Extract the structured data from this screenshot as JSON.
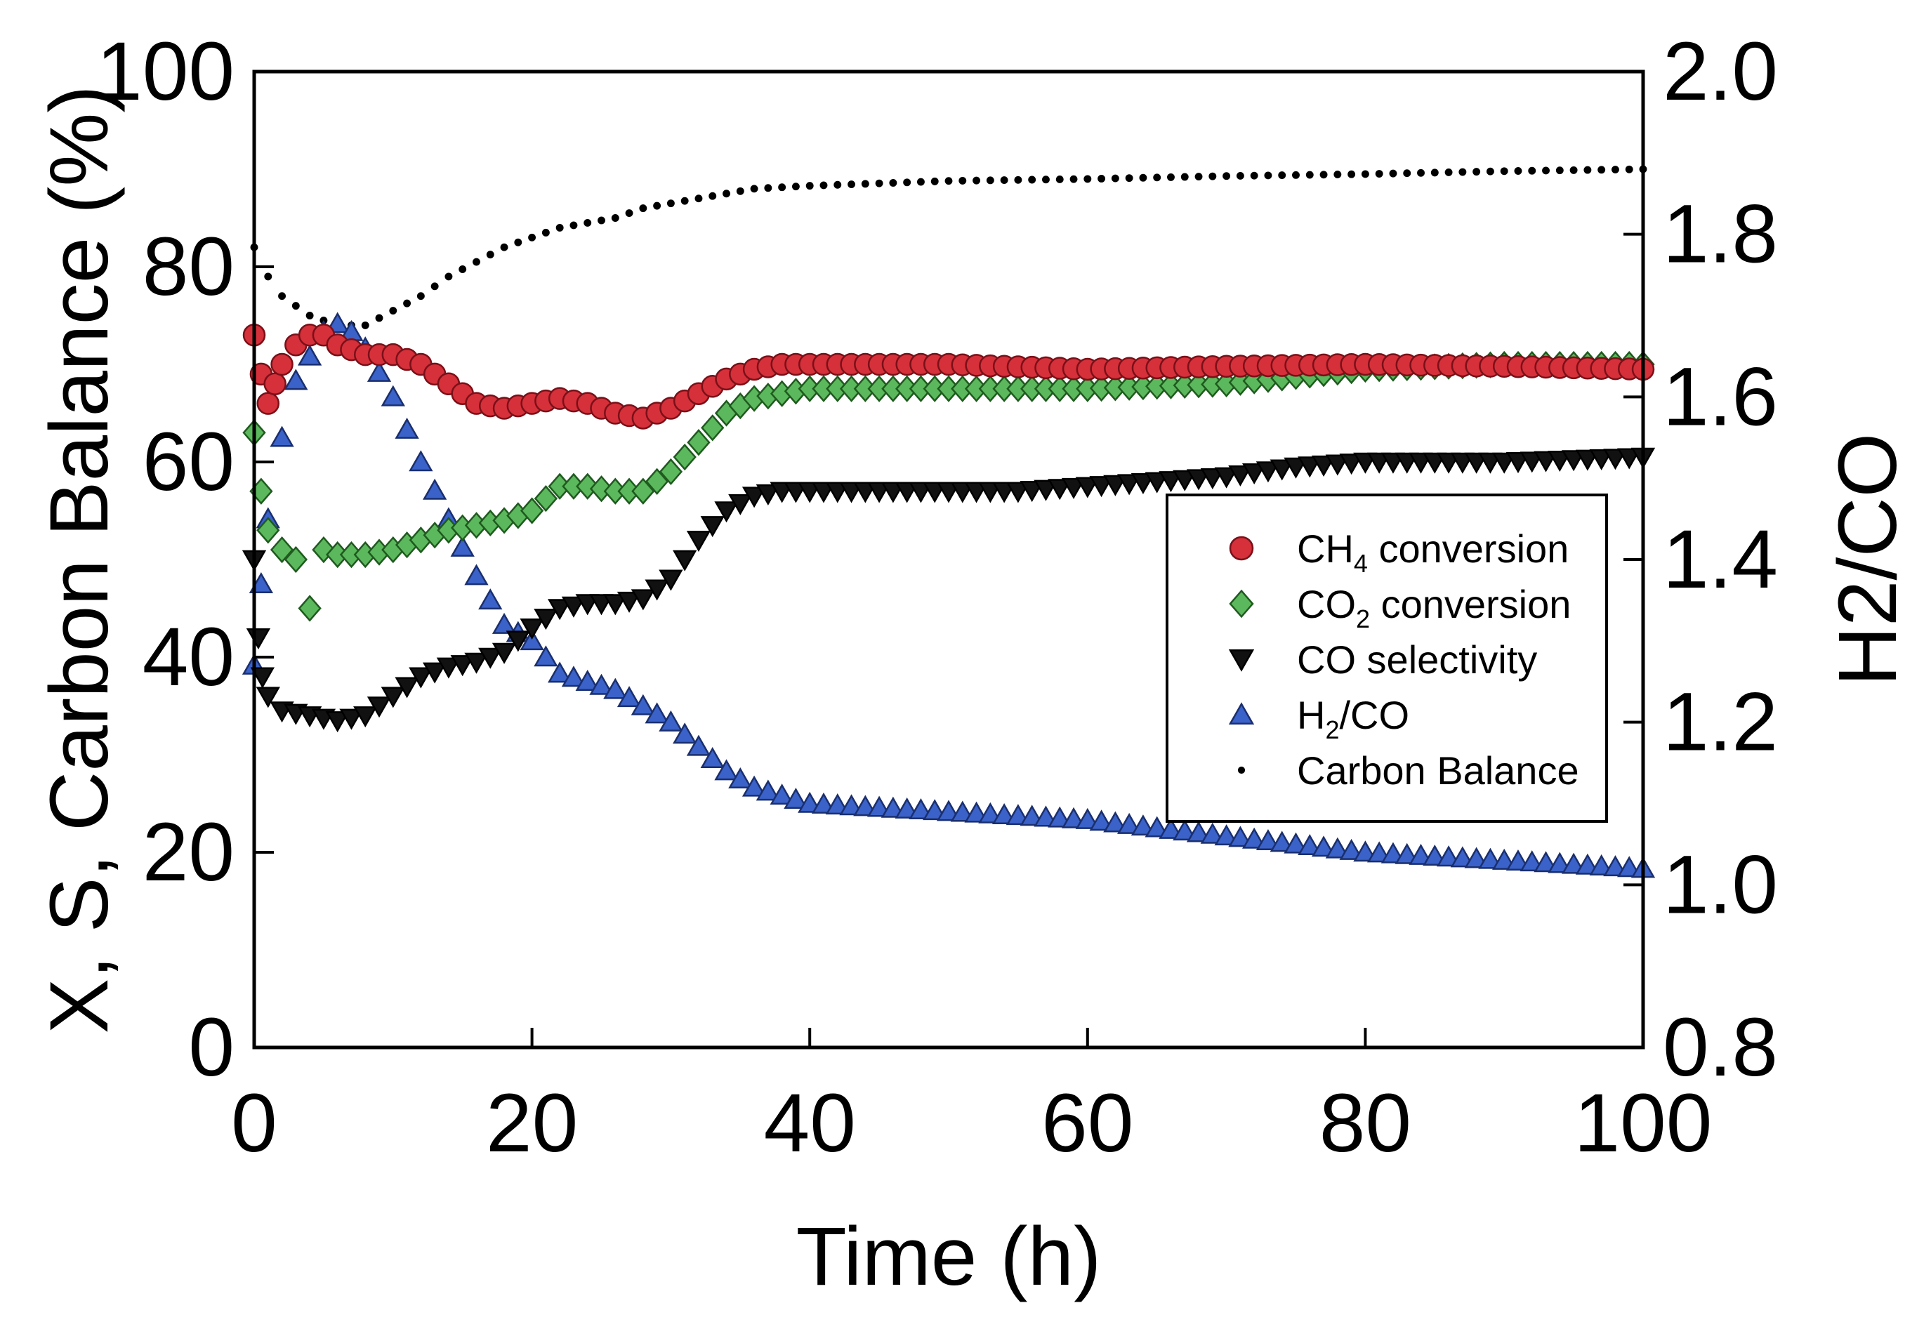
{
  "chart_data": {
    "type": "scatter",
    "title": "",
    "xlabel": "Time (h)",
    "ylabel": "X, S, Carbon Balance (%)",
    "y2label": "H2/CO",
    "xlim": [
      0,
      100
    ],
    "ylim": [
      0,
      100
    ],
    "y2lim": [
      0.8,
      2.0
    ],
    "xticks": [
      0,
      20,
      40,
      60,
      80,
      100
    ],
    "yticks": [
      0,
      20,
      40,
      60,
      80,
      100
    ],
    "y2ticks": [
      "0.8",
      "1.0",
      "1.2",
      "1.4",
      "1.6",
      "1.8",
      "2.0"
    ],
    "grid": false,
    "legend_position": "center-right",
    "legend": [
      {
        "label_main": "CH",
        "label_sub": "4",
        "label_rest": " conversion",
        "series": "ch4"
      },
      {
        "label_main": "CO",
        "label_sub": "2",
        "label_rest": " conversion",
        "series": "co2"
      },
      {
        "label_main": "CO selectivity",
        "label_sub": "",
        "label_rest": "",
        "series": "cosel"
      },
      {
        "label_main": "H",
        "label_sub": "2",
        "label_rest": "/CO",
        "series": "h2co"
      },
      {
        "label_main": "Carbon Balance",
        "label_sub": "",
        "label_rest": "",
        "series": "cb"
      }
    ],
    "series": [
      {
        "id": "ch4",
        "name": "CH4 conversion",
        "axis": "left",
        "marker": "circle",
        "color": "#d6303a",
        "stroke": "#7a1018",
        "points": [
          [
            0,
            73
          ],
          [
            0.5,
            69
          ],
          [
            1,
            66
          ],
          [
            1.5,
            68
          ],
          [
            2,
            70
          ],
          [
            3,
            72
          ],
          [
            4,
            73
          ],
          [
            5,
            73
          ],
          [
            6,
            72
          ],
          [
            8,
            71
          ],
          [
            10,
            71
          ],
          [
            12,
            70
          ],
          [
            14,
            68
          ],
          [
            16,
            66
          ],
          [
            18,
            65.5
          ],
          [
            20,
            66
          ],
          [
            22,
            66.5
          ],
          [
            24,
            66
          ],
          [
            26,
            65
          ],
          [
            28,
            64.5
          ],
          [
            30,
            65.5
          ],
          [
            32,
            67
          ],
          [
            34,
            68.5
          ],
          [
            36,
            69.5
          ],
          [
            38,
            70
          ],
          [
            40,
            70
          ],
          [
            50,
            70
          ],
          [
            60,
            69.5
          ],
          [
            70,
            69.8
          ],
          [
            80,
            70
          ],
          [
            90,
            69.8
          ],
          [
            100,
            69.5
          ]
        ]
      },
      {
        "id": "co2",
        "name": "CO2 conversion",
        "axis": "left",
        "marker": "diamond",
        "color": "#5cb85c",
        "stroke": "#1f5a1f",
        "points": [
          [
            0,
            63
          ],
          [
            0.5,
            57
          ],
          [
            1,
            53
          ],
          [
            2,
            51
          ],
          [
            3,
            50
          ],
          [
            4,
            45
          ],
          [
            5,
            51
          ],
          [
            6,
            50.5
          ],
          [
            8,
            50.5
          ],
          [
            10,
            51
          ],
          [
            12,
            52
          ],
          [
            14,
            53
          ],
          [
            16,
            53.5
          ],
          [
            18,
            54
          ],
          [
            20,
            55
          ],
          [
            22,
            57.5
          ],
          [
            24,
            57.5
          ],
          [
            26,
            57
          ],
          [
            28,
            57
          ],
          [
            30,
            59
          ],
          [
            32,
            62
          ],
          [
            34,
            65
          ],
          [
            36,
            66.5
          ],
          [
            38,
            67
          ],
          [
            40,
            67.5
          ],
          [
            50,
            67.5
          ],
          [
            60,
            67.5
          ],
          [
            70,
            68
          ],
          [
            80,
            69.5
          ],
          [
            90,
            70
          ],
          [
            100,
            70
          ]
        ]
      },
      {
        "id": "cosel",
        "name": "CO selectivity",
        "axis": "left",
        "marker": "triangle-down",
        "color": "#111111",
        "stroke": "#000000",
        "points": [
          [
            0,
            50
          ],
          [
            0.3,
            42
          ],
          [
            0.6,
            38
          ],
          [
            1,
            36
          ],
          [
            2,
            34.5
          ],
          [
            4,
            34
          ],
          [
            6,
            33.5
          ],
          [
            8,
            34
          ],
          [
            10,
            36
          ],
          [
            12,
            38
          ],
          [
            14,
            39
          ],
          [
            16,
            39.5
          ],
          [
            18,
            40.5
          ],
          [
            20,
            43
          ],
          [
            22,
            45
          ],
          [
            24,
            45.5
          ],
          [
            26,
            45.5
          ],
          [
            28,
            46
          ],
          [
            30,
            48
          ],
          [
            32,
            52
          ],
          [
            34,
            55
          ],
          [
            36,
            56.5
          ],
          [
            38,
            57
          ],
          [
            40,
            57
          ],
          [
            45,
            57
          ],
          [
            50,
            57
          ],
          [
            55,
            57
          ],
          [
            60,
            57.5
          ],
          [
            65,
            58
          ],
          [
            70,
            58.5
          ],
          [
            75,
            59.5
          ],
          [
            80,
            60
          ],
          [
            90,
            60
          ],
          [
            100,
            60.5
          ]
        ]
      },
      {
        "id": "h2co",
        "name": "H2/CO",
        "axis": "right",
        "marker": "triangle-up",
        "color": "#3a62c9",
        "stroke": "#1a2f6e",
        "points": [
          [
            0,
            1.27
          ],
          [
            0.5,
            1.37
          ],
          [
            1,
            1.45
          ],
          [
            2,
            1.55
          ],
          [
            3,
            1.62
          ],
          [
            4,
            1.65
          ],
          [
            5,
            1.68
          ],
          [
            6,
            1.69
          ],
          [
            7,
            1.68
          ],
          [
            8,
            1.66
          ],
          [
            10,
            1.6
          ],
          [
            12,
            1.52
          ],
          [
            14,
            1.45
          ],
          [
            16,
            1.38
          ],
          [
            18,
            1.32
          ],
          [
            20,
            1.3
          ],
          [
            22,
            1.26
          ],
          [
            24,
            1.25
          ],
          [
            26,
            1.24
          ],
          [
            28,
            1.22
          ],
          [
            30,
            1.2
          ],
          [
            32,
            1.17
          ],
          [
            34,
            1.14
          ],
          [
            36,
            1.12
          ],
          [
            40,
            1.1
          ],
          [
            50,
            1.09
          ],
          [
            60,
            1.08
          ],
          [
            70,
            1.06
          ],
          [
            80,
            1.04
          ],
          [
            90,
            1.03
          ],
          [
            100,
            1.02
          ]
        ]
      },
      {
        "id": "cb",
        "name": "Carbon Balance",
        "axis": "left",
        "marker": "dot",
        "color": "#000000",
        "stroke": "#000000",
        "points": [
          [
            0,
            82
          ],
          [
            1,
            79
          ],
          [
            2,
            77
          ],
          [
            3,
            76
          ],
          [
            4,
            75
          ],
          [
            6,
            74
          ],
          [
            8,
            74
          ],
          [
            10,
            75.5
          ],
          [
            12,
            77
          ],
          [
            14,
            79
          ],
          [
            16,
            80.5
          ],
          [
            18,
            82
          ],
          [
            20,
            83
          ],
          [
            22,
            84
          ],
          [
            24,
            84.5
          ],
          [
            26,
            85
          ],
          [
            28,
            86
          ],
          [
            30,
            86.5
          ],
          [
            32,
            87
          ],
          [
            34,
            87.5
          ],
          [
            36,
            88
          ],
          [
            40,
            88.3
          ],
          [
            50,
            88.8
          ],
          [
            60,
            89
          ],
          [
            70,
            89.3
          ],
          [
            80,
            89.5
          ],
          [
            90,
            89.8
          ],
          [
            100,
            90
          ]
        ]
      }
    ]
  }
}
